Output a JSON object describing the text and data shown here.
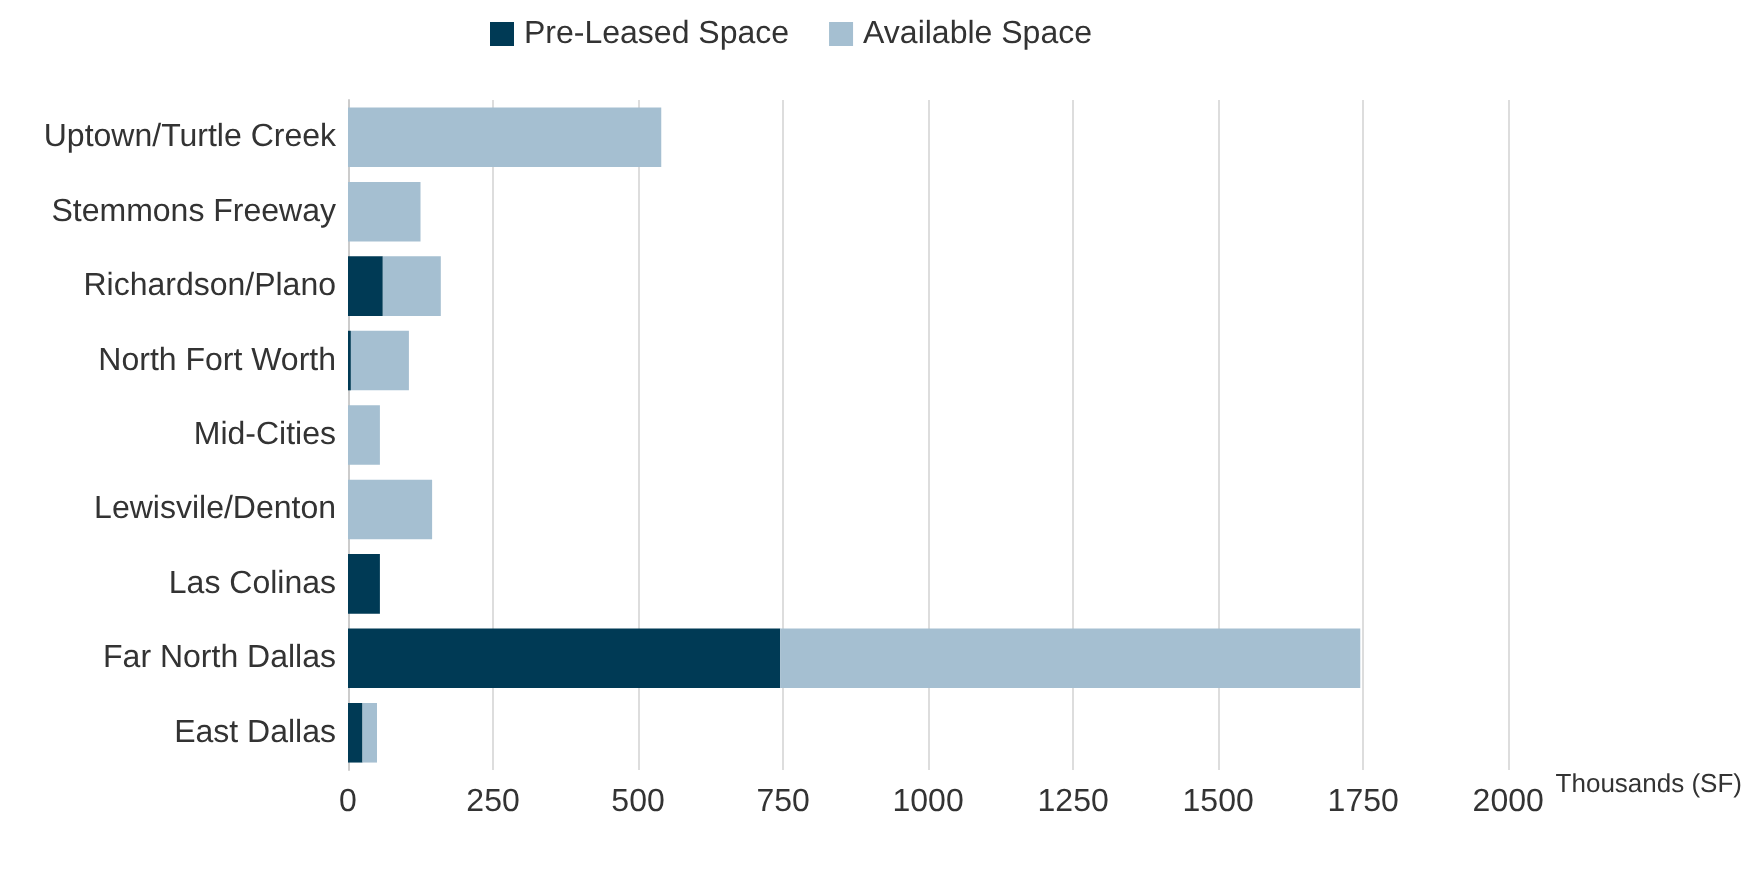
{
  "chart_data": {
    "type": "bar",
    "orientation": "horizontal",
    "stacked": true,
    "categories": [
      "Uptown/Turtle Creek",
      "Stemmons Freeway",
      "Richardson/Plano",
      "North Fort Worth",
      "Mid-Cities",
      "Lewisvile/Denton",
      "Las Colinas",
      "Far North Dallas",
      "East Dallas"
    ],
    "series": [
      {
        "name": "Pre-Leased Space",
        "color": "#003a55",
        "values": [
          0,
          0,
          60,
          5,
          0,
          0,
          55,
          745,
          25
        ]
      },
      {
        "name": "Available Space",
        "color": "#a5bfd1",
        "values": [
          540,
          125,
          100,
          100,
          55,
          145,
          0,
          1000,
          25
        ]
      }
    ],
    "xlim": [
      0,
      2000
    ],
    "xticks": [
      0,
      250,
      500,
      750,
      1000,
      1250,
      1500,
      1750,
      2000
    ],
    "xlabel": "Thousands (SF)",
    "grid": "x",
    "legend": "top left"
  }
}
